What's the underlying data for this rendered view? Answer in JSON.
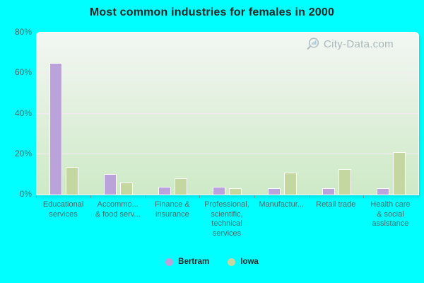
{
  "title": "Most common industries for females in 2000",
  "watermark": {
    "text": "City-Data.com"
  },
  "colors": {
    "background": "#00ffff",
    "title_text": "#262626",
    "axis_text": "#4a6868",
    "legend_text": "#2a2a2a",
    "gridline": "#f6e7f2",
    "plot_gradient_top": "#f2f7f3",
    "plot_gradient_bottom": "#cdeac6",
    "bertram": "#b9a3da",
    "iowa": "#c4d7a0"
  },
  "chart_data": {
    "type": "bar",
    "title": "Most common industries for females in 2000",
    "categories": [
      "Educational services",
      "Accommo... & food serv...",
      "Finance & insurance",
      "Professional, scientific, technical services",
      "Manufactur...",
      "Retail trade",
      "Health care & social assistance"
    ],
    "category_lines": [
      [
        "Educational",
        "services"
      ],
      [
        "Accommo...",
        "& food serv..."
      ],
      [
        "Finance &",
        "insurance"
      ],
      [
        "Professional,",
        "scientific,",
        "technical",
        "services"
      ],
      [
        "Manufactur..."
      ],
      [
        "Retail trade"
      ],
      [
        "Health care",
        "& social",
        "assistance"
      ]
    ],
    "series": [
      {
        "name": "Bertram",
        "color": "#b9a3da",
        "values": [
          65,
          10,
          4,
          4,
          3,
          3,
          3
        ]
      },
      {
        "name": "Iowa",
        "color": "#c4d7a0",
        "values": [
          13.5,
          6,
          8,
          3,
          11,
          12.5,
          21
        ]
      }
    ],
    "xlabel": "",
    "ylabel": "",
    "ylim": [
      0,
      80
    ],
    "yticks": [
      0,
      20,
      40,
      60,
      80
    ],
    "ytick_labels": [
      "0%",
      "20%",
      "40%",
      "60%",
      "80%"
    ],
    "grid": "horizontal",
    "legend_position": "bottom"
  }
}
